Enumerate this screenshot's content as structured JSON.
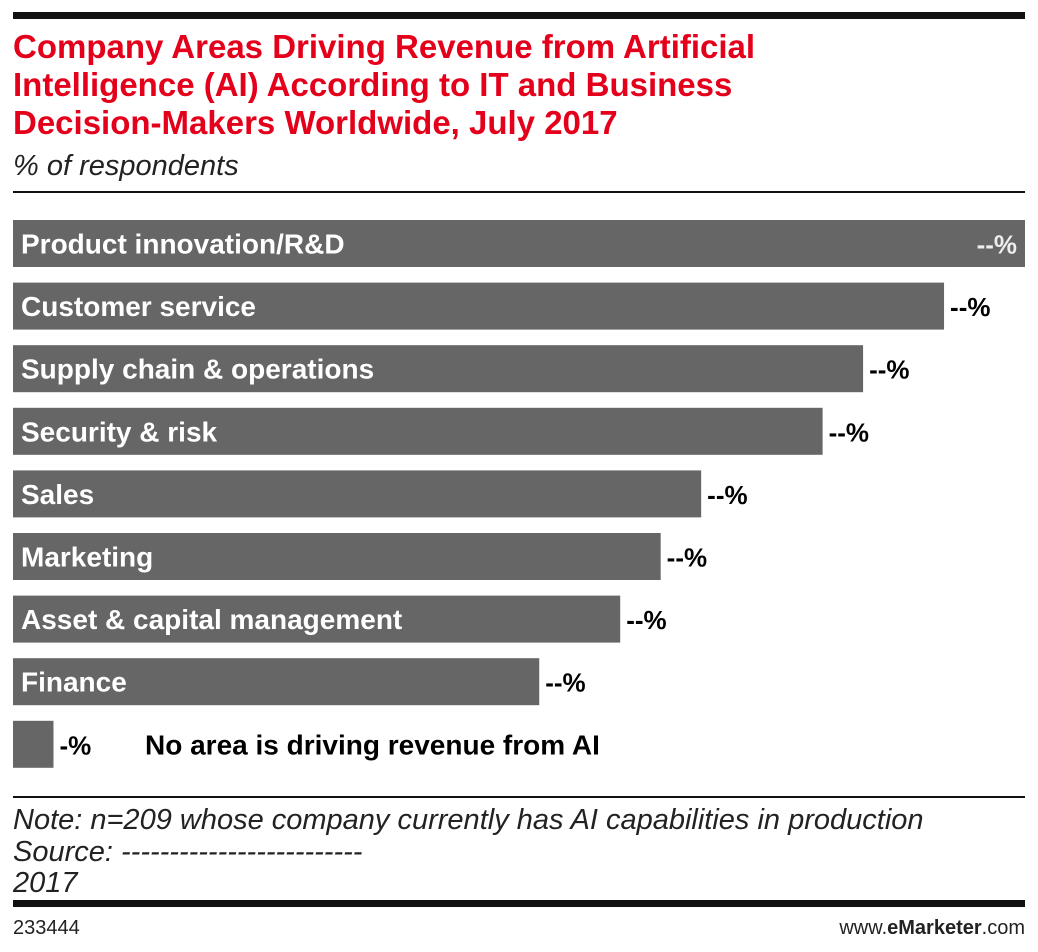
{
  "chart_data": {
    "type": "bar",
    "title": [
      "Company Areas Driving Revenue from Artificial",
      "Intelligence (AI) According to IT and Business",
      "Decision-Makers Worldwide, July 2017"
    ],
    "subtitle": "% of respondents",
    "categories": [
      "Product innovation/R&D",
      "Customer service",
      "Supply chain & operations",
      "Security & risk",
      "Sales",
      "Marketing",
      "Asset & capital management",
      "Finance",
      "No area is driving revenue from AI"
    ],
    "values": [
      25,
      23,
      21,
      20,
      17,
      16,
      15,
      13,
      1
    ],
    "value_labels": [
      "--%",
      "--%",
      "--%",
      "--%",
      "--%",
      "--%",
      "--%",
      "--%",
      "-%"
    ],
    "color": "#666666",
    "xlim": [
      0,
      25
    ],
    "note": [
      "Note: n=209 whose company currently has AI capabilities in production",
      "Source: -------------------------",
      "2017"
    ],
    "chart_id": "233444",
    "site": [
      "www.",
      "eMarketer",
      ".com"
    ]
  }
}
